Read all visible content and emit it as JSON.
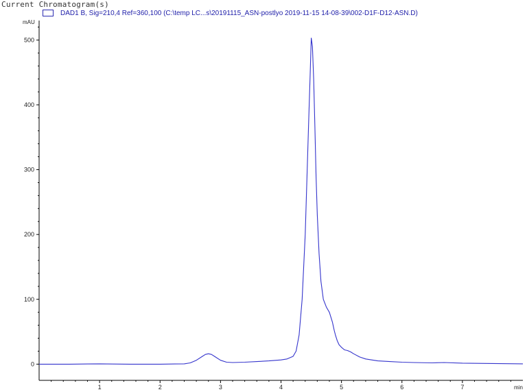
{
  "window": {
    "title": "Current Chromatogram(s)"
  },
  "chart_data": {
    "type": "line",
    "title": "",
    "xlabel": "min",
    "ylabel": "mAU",
    "xlim": [
      0,
      8.0
    ],
    "ylim": [
      -25,
      530
    ],
    "x_ticks": [
      1,
      2,
      3,
      4,
      5,
      6,
      7
    ],
    "y_ticks": [
      0,
      100,
      200,
      300,
      400,
      500
    ],
    "grid": false,
    "legend": "top-left",
    "series": [
      {
        "name": "DAD1 B, Sig=210,4 Ref=360,100 (C:\\temp LC...s\\20191115_ASN-postlyo 2019-11-15 14-08-39\\002-D1F-D12-ASN.D)",
        "color": "#3333cc",
        "x": [
          0.0,
          0.5,
          1.0,
          1.5,
          2.0,
          2.4,
          2.5,
          2.6,
          2.7,
          2.75,
          2.8,
          2.85,
          2.9,
          3.0,
          3.1,
          3.2,
          3.4,
          3.6,
          3.8,
          4.0,
          4.1,
          4.2,
          4.25,
          4.3,
          4.35,
          4.4,
          4.43,
          4.46,
          4.48,
          4.5,
          4.52,
          4.54,
          4.56,
          4.58,
          4.6,
          4.63,
          4.66,
          4.7,
          4.75,
          4.8,
          4.85,
          4.88,
          4.9,
          4.93,
          4.96,
          5.0,
          5.05,
          5.1,
          5.15,
          5.2,
          5.3,
          5.4,
          5.6,
          5.8,
          6.0,
          6.2,
          6.5,
          6.7,
          7.0,
          7.5,
          8.0
        ],
        "y": [
          0,
          0,
          0.5,
          0,
          0,
          0.5,
          2,
          6,
          12,
          15,
          16,
          15,
          12,
          6,
          3,
          2.5,
          3,
          4,
          5,
          6.5,
          8,
          12,
          20,
          45,
          100,
          200,
          290,
          380,
          440,
          503,
          490,
          440,
          370,
          290,
          230,
          170,
          128,
          100,
          88,
          80,
          65,
          52,
          45,
          36,
          30,
          26,
          22,
          21,
          19,
          16,
          11,
          8,
          5,
          4,
          3,
          2.5,
          2,
          2.5,
          1.5,
          1,
          0.5
        ]
      }
    ]
  }
}
